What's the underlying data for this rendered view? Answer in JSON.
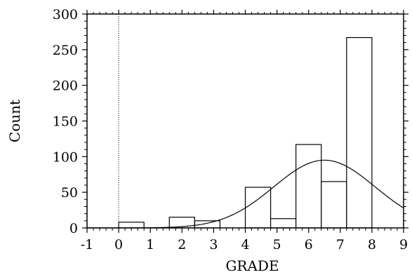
{
  "chart_data": {
    "type": "bar",
    "subtype": "histogram-with-normal-curve",
    "xlabel": "GRADE",
    "ylabel": "Count",
    "xlim": [
      -1,
      9
    ],
    "ylim": [
      0,
      300
    ],
    "x_ticks": [
      "-1",
      "0",
      "1",
      "2",
      "3",
      "4",
      "5",
      "6",
      "7",
      "8",
      "9"
    ],
    "y_ticks": [
      "0",
      "50",
      "100",
      "150",
      "200",
      "250",
      "300"
    ],
    "reference_line_x": 0,
    "bins": [
      {
        "x0": 0.0,
        "x1": 0.8,
        "count": 8
      },
      {
        "x0": 1.6,
        "x1": 2.4,
        "count": 15
      },
      {
        "x0": 2.4,
        "x1": 3.2,
        "count": 10
      },
      {
        "x0": 4.0,
        "x1": 4.8,
        "count": 57
      },
      {
        "x0": 4.8,
        "x1": 5.6,
        "count": 13
      },
      {
        "x0": 5.6,
        "x1": 6.4,
        "count": 117
      },
      {
        "x0": 6.4,
        "x1": 7.2,
        "count": 65
      },
      {
        "x0": 7.2,
        "x1": 8.0,
        "count": 267
      }
    ],
    "normal_curve": {
      "mean": 6.5,
      "sd": 1.6,
      "peak": 95
    },
    "grid": false
  }
}
